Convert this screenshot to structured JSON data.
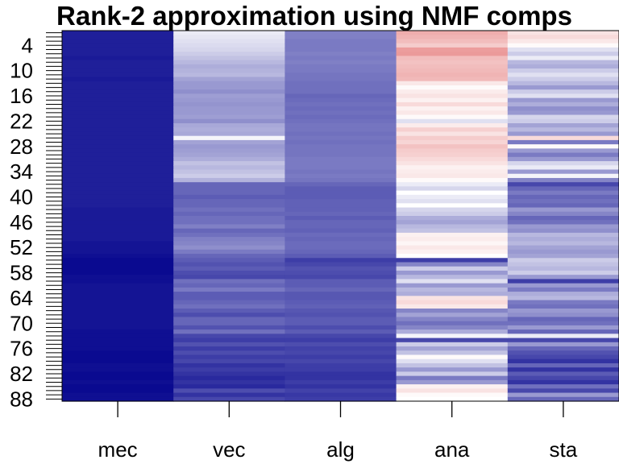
{
  "chart_data": {
    "type": "heatmap",
    "title": "Rank-2 approximation using NMF comps",
    "xlabel": "",
    "ylabel": "",
    "x_categories": [
      "mec",
      "vec",
      "alg",
      "ana",
      "sta"
    ],
    "y_tick_labels": [
      "4",
      "10",
      "16",
      "22",
      "28",
      "34",
      "40",
      "46",
      "52",
      "58",
      "64",
      "70",
      "76",
      "82",
      "88"
    ],
    "n_rows": 88,
    "row_order": "row 1 at top, row 88 at bottom",
    "value_scale": "0 = deep blue, 0.5 = white, 1 = red (approximate)",
    "colors": {
      "low": "#00008b",
      "mid": "#ffffff",
      "high": "#e88a8a"
    },
    "grid": false,
    "legend": "none",
    "values": {
      "mec": [
        0.06,
        0.06,
        0.06,
        0.06,
        0.06,
        0.06,
        0.05,
        0.06,
        0.06,
        0.06,
        0.06,
        0.05,
        0.06,
        0.06,
        0.06,
        0.06,
        0.06,
        0.06,
        0.06,
        0.06,
        0.06,
        0.06,
        0.06,
        0.06,
        0.06,
        0.06,
        0.06,
        0.06,
        0.06,
        0.06,
        0.06,
        0.06,
        0.06,
        0.06,
        0.06,
        0.06,
        0.06,
        0.06,
        0.06,
        0.06,
        0.06,
        0.06,
        0.05,
        0.05,
        0.05,
        0.05,
        0.05,
        0.05,
        0.05,
        0.05,
        0.04,
        0.04,
        0.04,
        0.03,
        0.02,
        0.02,
        0.02,
        0.02,
        0.03,
        0.03,
        0.04,
        0.04,
        0.04,
        0.04,
        0.04,
        0.04,
        0.04,
        0.04,
        0.04,
        0.04,
        0.04,
        0.03,
        0.03,
        0.03,
        0.03,
        0.03,
        0.02,
        0.02,
        0.02,
        0.03,
        0.03,
        0.02,
        0.02,
        0.03,
        0.02,
        0.02,
        0.03,
        0.03
      ],
      "vec": [
        0.46,
        0.45,
        0.44,
        0.43,
        0.42,
        0.4,
        0.38,
        0.36,
        0.34,
        0.35,
        0.36,
        0.32,
        0.3,
        0.3,
        0.28,
        0.31,
        0.3,
        0.29,
        0.3,
        0.3,
        0.31,
        0.28,
        0.33,
        0.34,
        0.33,
        0.48,
        0.32,
        0.3,
        0.31,
        0.32,
        0.34,
        0.38,
        0.36,
        0.38,
        0.4,
        0.35,
        0.2,
        0.2,
        0.2,
        0.18,
        0.2,
        0.2,
        0.22,
        0.2,
        0.22,
        0.22,
        0.25,
        0.2,
        0.22,
        0.25,
        0.26,
        0.28,
        0.24,
        0.2,
        0.18,
        0.16,
        0.18,
        0.15,
        0.14,
        0.22,
        0.2,
        0.24,
        0.18,
        0.18,
        0.2,
        0.22,
        0.18,
        0.15,
        0.2,
        0.2,
        0.16,
        0.22,
        0.14,
        0.12,
        0.16,
        0.12,
        0.15,
        0.12,
        0.14,
        0.1,
        0.12,
        0.1,
        0.08,
        0.1,
        0.08,
        0.15,
        0.1,
        0.14
      ],
      "alg": [
        0.25,
        0.25,
        0.24,
        0.24,
        0.24,
        0.25,
        0.24,
        0.25,
        0.24,
        0.24,
        0.23,
        0.23,
        0.22,
        0.22,
        0.22,
        0.2,
        0.21,
        0.22,
        0.21,
        0.22,
        0.21,
        0.22,
        0.23,
        0.23,
        0.22,
        0.23,
        0.22,
        0.23,
        0.23,
        0.23,
        0.24,
        0.24,
        0.24,
        0.23,
        0.24,
        0.23,
        0.2,
        0.18,
        0.18,
        0.18,
        0.19,
        0.19,
        0.19,
        0.2,
        0.18,
        0.2,
        0.2,
        0.19,
        0.21,
        0.2,
        0.21,
        0.21,
        0.2,
        0.18,
        0.12,
        0.14,
        0.16,
        0.15,
        0.14,
        0.18,
        0.18,
        0.2,
        0.17,
        0.17,
        0.18,
        0.19,
        0.17,
        0.16,
        0.18,
        0.18,
        0.15,
        0.18,
        0.14,
        0.12,
        0.15,
        0.13,
        0.14,
        0.12,
        0.14,
        0.12,
        0.12,
        0.1,
        0.1,
        0.12,
        0.1,
        0.13,
        0.11,
        0.12
      ],
      "ana": [
        0.85,
        0.82,
        0.78,
        0.72,
        0.92,
        0.93,
        0.78,
        0.76,
        0.78,
        0.8,
        0.82,
        0.8,
        0.6,
        0.52,
        0.58,
        0.62,
        0.56,
        0.66,
        0.56,
        0.6,
        0.52,
        0.44,
        0.58,
        0.7,
        0.62,
        0.72,
        0.68,
        0.76,
        0.72,
        0.7,
        0.66,
        0.62,
        0.56,
        0.58,
        0.6,
        0.52,
        0.46,
        0.42,
        0.5,
        0.46,
        0.44,
        0.5,
        0.42,
        0.4,
        0.34,
        0.32,
        0.36,
        0.38,
        0.56,
        0.58,
        0.54,
        0.6,
        0.56,
        0.5,
        0.12,
        0.26,
        0.4,
        0.3,
        0.36,
        0.44,
        0.3,
        0.36,
        0.34,
        0.62,
        0.66,
        0.6,
        0.26,
        0.32,
        0.26,
        0.22,
        0.26,
        0.34,
        0.48,
        0.14,
        0.4,
        0.32,
        0.38,
        0.52,
        0.44,
        0.38,
        0.3,
        0.4,
        0.24,
        0.3,
        0.56,
        0.62,
        0.52,
        0.5
      ],
      "sta": [
        0.62,
        0.66,
        0.6,
        0.52,
        0.44,
        0.4,
        0.46,
        0.36,
        0.34,
        0.4,
        0.44,
        0.4,
        0.36,
        0.3,
        0.4,
        0.44,
        0.3,
        0.34,
        0.28,
        0.3,
        0.42,
        0.4,
        0.32,
        0.36,
        0.3,
        0.66,
        0.24,
        0.52,
        0.3,
        0.24,
        0.3,
        0.42,
        0.46,
        0.3,
        0.48,
        0.26,
        0.14,
        0.2,
        0.24,
        0.2,
        0.22,
        0.2,
        0.3,
        0.26,
        0.2,
        0.22,
        0.3,
        0.28,
        0.36,
        0.34,
        0.36,
        0.32,
        0.3,
        0.32,
        0.4,
        0.38,
        0.36,
        0.4,
        0.3,
        0.12,
        0.3,
        0.24,
        0.34,
        0.36,
        0.24,
        0.22,
        0.3,
        0.28,
        0.2,
        0.22,
        0.3,
        0.2,
        0.46,
        0.14,
        0.3,
        0.2,
        0.16,
        0.14,
        0.1,
        0.2,
        0.1,
        0.18,
        0.14,
        0.1,
        0.22,
        0.14,
        0.3,
        0.2
      ]
    }
  }
}
